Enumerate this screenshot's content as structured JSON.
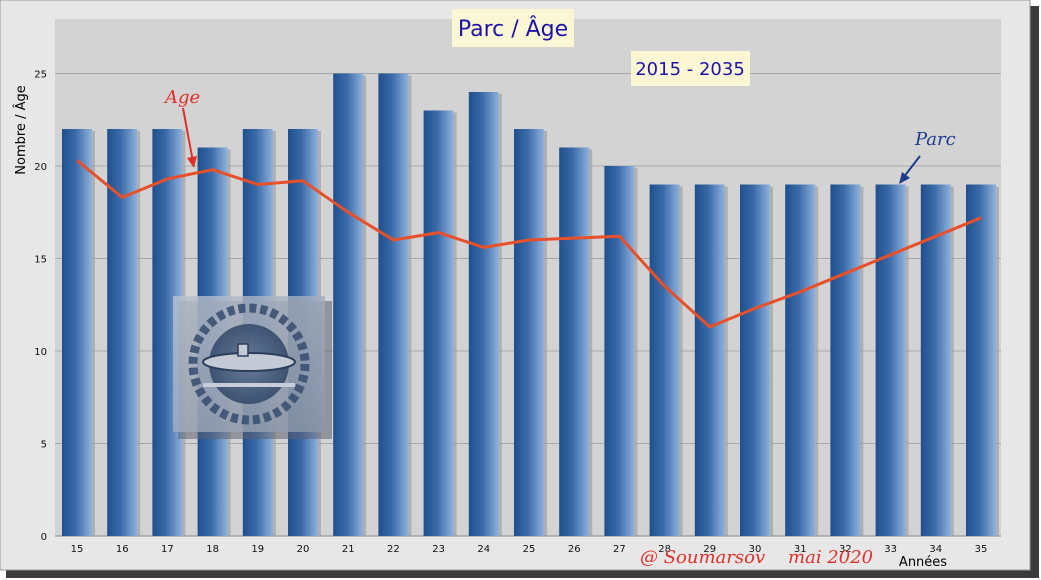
{
  "colors": {
    "bar_dark": "#1f4f8c",
    "bar_light": "#8fb2dc",
    "line": "#e8502a",
    "plot_bg": "#d3d3d3",
    "title_fg": "#1f12a8",
    "title_bg": "#fbf7d4",
    "parc_annotation": "#1e3c8c",
    "age_annotation": "#e0302a",
    "credit": "#e0302a"
  },
  "chart_data": {
    "type": "bar",
    "title": "Parc / Âge",
    "subtitle": "2015 - 2035",
    "ylabel": "Nombre / Âge",
    "xlabel": "Années",
    "categories": [
      "15",
      "16",
      "17",
      "18",
      "19",
      "20",
      "21",
      "22",
      "23",
      "24",
      "25",
      "26",
      "27",
      "28",
      "29",
      "30",
      "31",
      "32",
      "33",
      "34",
      "35"
    ],
    "ylim": [
      0,
      27
    ],
    "yticks": [
      0,
      5,
      10,
      15,
      20,
      25
    ],
    "grid": true,
    "series": [
      {
        "name": "Parc",
        "type": "bar",
        "values": [
          22,
          22,
          22,
          21,
          22,
          22,
          25,
          25,
          23,
          24,
          22,
          21,
          20,
          19,
          19,
          19,
          19,
          19,
          19,
          19,
          19
        ]
      },
      {
        "name": "Age",
        "type": "line",
        "values": [
          20.3,
          18.3,
          19.3,
          19.8,
          19.0,
          19.2,
          17.5,
          16.0,
          16.4,
          15.6,
          16.0,
          16.1,
          16.2,
          13.5,
          11.3,
          12.3,
          13.2,
          14.2,
          15.2,
          16.2,
          17.2
        ]
      }
    ],
    "annotations": [
      "Age",
      "Parc"
    ],
    "credit": "@ Soumarsov    mai 2020"
  }
}
